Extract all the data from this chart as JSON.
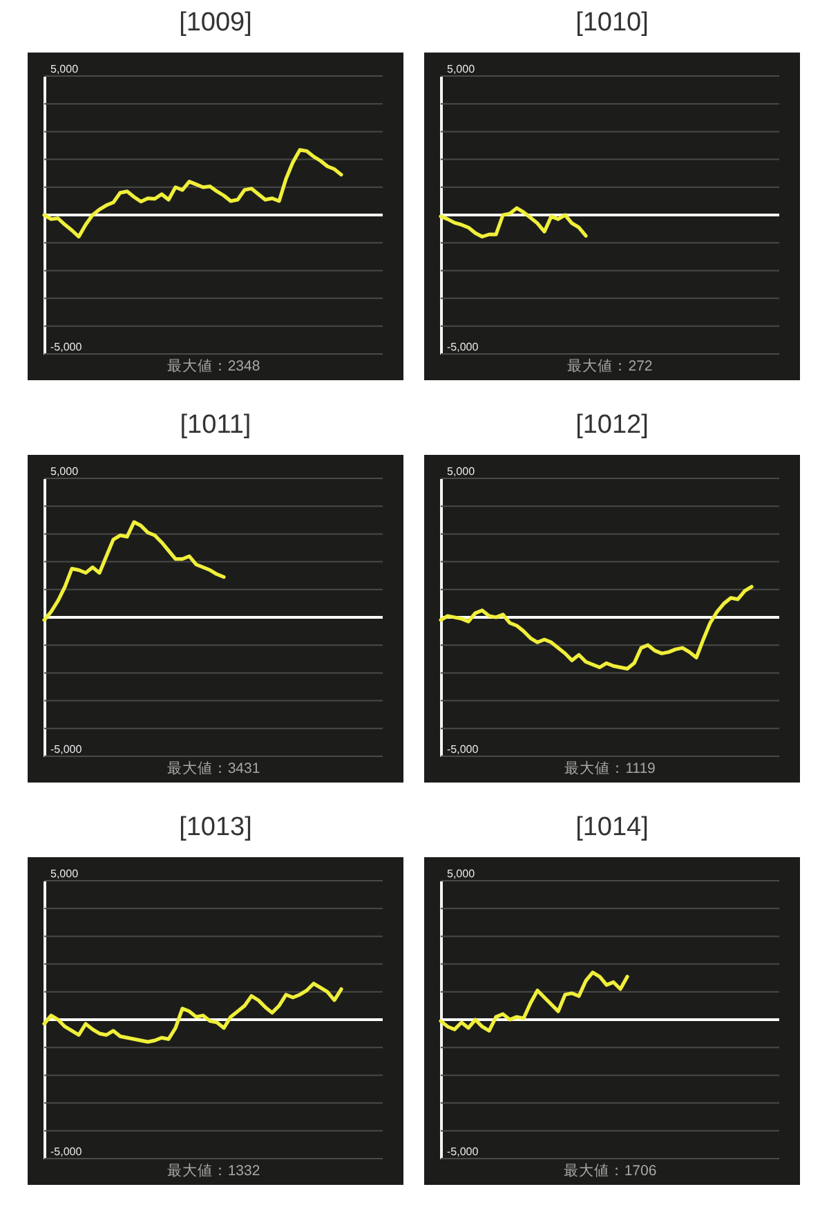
{
  "chart_data": [
    {
      "type": "line",
      "title": "[1009]",
      "categories": [
        null,
        null,
        null,
        null,
        null,
        null,
        null,
        null,
        null,
        null,
        null,
        null,
        null,
        null,
        null,
        null,
        null,
        null,
        null,
        null,
        null,
        null,
        null,
        null,
        null,
        null,
        null,
        null,
        null,
        null,
        null,
        null,
        null,
        null,
        null,
        null,
        null,
        null,
        null,
        null,
        null,
        null,
        null,
        null,
        null,
        null,
        null,
        null,
        null,
        null
      ],
      "color": "#f0ef3a",
      "values": [
        0,
        -150,
        -120,
        -350,
        -550,
        -780,
        -350,
        0,
        200,
        350,
        450,
        800,
        850,
        650,
        480,
        600,
        580,
        750,
        550,
        1000,
        900,
        1200,
        1100,
        1000,
        1030,
        850,
        700,
        500,
        550,
        900,
        950,
        750,
        550,
        600,
        500,
        1300,
        1900,
        2340,
        2300,
        2100,
        1950,
        1750,
        1650,
        1450,
        null,
        null,
        null,
        null,
        null,
        null
      ],
      "ylim": [
        -5000,
        5000
      ],
      "yticks": [
        {
          "value": 5000,
          "label": "5,000"
        },
        {
          "value": 4000,
          "label": null
        },
        {
          "value": 3000,
          "label": null
        },
        {
          "value": 2000,
          "label": null
        },
        {
          "value": 1000,
          "label": null
        },
        {
          "value": 0,
          "label": null
        },
        {
          "value": -1000,
          "label": null
        },
        {
          "value": -2000,
          "label": null
        },
        {
          "value": -3000,
          "label": null
        },
        {
          "value": -4000,
          "label": null
        },
        {
          "value": -5000,
          "label": "-5,000"
        }
      ],
      "grid": "y",
      "tick_labels": "y",
      "ref_lines": [
        {
          "axis": "y",
          "value": 0,
          "color": "#ffffff"
        }
      ],
      "annotations": [
        "最大値：2348"
      ]
    },
    {
      "type": "line",
      "title": "[1010]",
      "categories": [
        null,
        null,
        null,
        null,
        null,
        null,
        null,
        null,
        null,
        null,
        null,
        null,
        null,
        null,
        null,
        null,
        null,
        null,
        null,
        null,
        null,
        null,
        null,
        null,
        null,
        null,
        null,
        null,
        null,
        null,
        null,
        null,
        null,
        null,
        null,
        null,
        null,
        null,
        null,
        null,
        null,
        null,
        null,
        null,
        null,
        null,
        null,
        null,
        null,
        null
      ],
      "color": "#f0ef3a",
      "values": [
        -50,
        -150,
        -280,
        -350,
        -450,
        -650,
        -780,
        -700,
        -700,
        0,
        50,
        250,
        100,
        -100,
        -300,
        -600,
        -50,
        -150,
        0,
        -300,
        -450,
        -750,
        null,
        null,
        null,
        null,
        null,
        null,
        null,
        null,
        null,
        null,
        null,
        null,
        null,
        null,
        null,
        null,
        null,
        null,
        null,
        null,
        null,
        null,
        null,
        null,
        null,
        null,
        null,
        null
      ],
      "ylim": [
        -5000,
        5000
      ],
      "yticks": [
        {
          "value": 5000,
          "label": "5,000"
        },
        {
          "value": 4000,
          "label": null
        },
        {
          "value": 3000,
          "label": null
        },
        {
          "value": 2000,
          "label": null
        },
        {
          "value": 1000,
          "label": null
        },
        {
          "value": 0,
          "label": null
        },
        {
          "value": -1000,
          "label": null
        },
        {
          "value": -2000,
          "label": null
        },
        {
          "value": -3000,
          "label": null
        },
        {
          "value": -4000,
          "label": null
        },
        {
          "value": -5000,
          "label": "-5,000"
        }
      ],
      "grid": "y",
      "tick_labels": "y",
      "ref_lines": [
        {
          "axis": "y",
          "value": 0,
          "color": "#ffffff"
        }
      ],
      "annotations": [
        "最大値：272"
      ]
    },
    {
      "type": "line",
      "title": "[1011]",
      "categories": [
        null,
        null,
        null,
        null,
        null,
        null,
        null,
        null,
        null,
        null,
        null,
        null,
        null,
        null,
        null,
        null,
        null,
        null,
        null,
        null,
        null,
        null,
        null,
        null,
        null,
        null,
        null,
        null,
        null,
        null,
        null,
        null,
        null,
        null,
        null,
        null,
        null,
        null,
        null,
        null,
        null,
        null,
        null,
        null,
        null,
        null,
        null,
        null,
        null,
        null
      ],
      "color": "#f0ef3a",
      "values": [
        -100,
        200,
        600,
        1100,
        1750,
        1700,
        1600,
        1800,
        1600,
        2200,
        2800,
        2950,
        2900,
        3430,
        3300,
        3050,
        2950,
        2700,
        2400,
        2100,
        2100,
        2200,
        1900,
        1800,
        1700,
        1550,
        1450,
        null,
        null,
        null,
        null,
        null,
        null,
        null,
        null,
        null,
        null,
        null,
        null,
        null,
        null,
        null,
        null,
        null,
        null,
        null,
        null,
        null,
        null,
        null
      ],
      "ylim": [
        -5000,
        5000
      ],
      "yticks": [
        {
          "value": 5000,
          "label": "5,000"
        },
        {
          "value": 4000,
          "label": null
        },
        {
          "value": 3000,
          "label": null
        },
        {
          "value": 2000,
          "label": null
        },
        {
          "value": 1000,
          "label": null
        },
        {
          "value": 0,
          "label": null
        },
        {
          "value": -1000,
          "label": null
        },
        {
          "value": -2000,
          "label": null
        },
        {
          "value": -3000,
          "label": null
        },
        {
          "value": -4000,
          "label": null
        },
        {
          "value": -5000,
          "label": "-5,000"
        }
      ],
      "grid": "y",
      "tick_labels": "y",
      "ref_lines": [
        {
          "axis": "y",
          "value": 0,
          "color": "#ffffff"
        }
      ],
      "annotations": [
        "最大値：3431"
      ]
    },
    {
      "type": "line",
      "title": "[1012]",
      "categories": [
        null,
        null,
        null,
        null,
        null,
        null,
        null,
        null,
        null,
        null,
        null,
        null,
        null,
        null,
        null,
        null,
        null,
        null,
        null,
        null,
        null,
        null,
        null,
        null,
        null,
        null,
        null,
        null,
        null,
        null,
        null,
        null,
        null,
        null,
        null,
        null,
        null,
        null,
        null,
        null,
        null,
        null,
        null,
        null,
        null,
        null,
        null,
        null,
        null,
        null
      ],
      "color": "#f0ef3a",
      "values": [
        -100,
        50,
        0,
        -50,
        -150,
        150,
        250,
        50,
        0,
        100,
        -200,
        -300,
        -500,
        -750,
        -900,
        -800,
        -900,
        -1100,
        -1300,
        -1550,
        -1350,
        -1600,
        -1700,
        -1800,
        -1650,
        -1750,
        -1800,
        -1850,
        -1650,
        -1100,
        -1000,
        -1200,
        -1300,
        -1250,
        -1150,
        -1100,
        -1250,
        -1450,
        -800,
        -200,
        200,
        500,
        700,
        650,
        950,
        1100,
        null,
        null,
        null,
        null
      ],
      "ylim": [
        -5000,
        5000
      ],
      "yticks": [
        {
          "value": 5000,
          "label": "5,000"
        },
        {
          "value": 4000,
          "label": null
        },
        {
          "value": 3000,
          "label": null
        },
        {
          "value": 2000,
          "label": null
        },
        {
          "value": 1000,
          "label": null
        },
        {
          "value": 0,
          "label": null
        },
        {
          "value": -1000,
          "label": null
        },
        {
          "value": -2000,
          "label": null
        },
        {
          "value": -3000,
          "label": null
        },
        {
          "value": -4000,
          "label": null
        },
        {
          "value": -5000,
          "label": "-5,000"
        }
      ],
      "grid": "y",
      "tick_labels": "y",
      "ref_lines": [
        {
          "axis": "y",
          "value": 0,
          "color": "#ffffff"
        }
      ],
      "annotations": [
        "最大値：1119"
      ]
    },
    {
      "type": "line",
      "title": "[1013]",
      "categories": [
        null,
        null,
        null,
        null,
        null,
        null,
        null,
        null,
        null,
        null,
        null,
        null,
        null,
        null,
        null,
        null,
        null,
        null,
        null,
        null,
        null,
        null,
        null,
        null,
        null,
        null,
        null,
        null,
        null,
        null,
        null,
        null,
        null,
        null,
        null,
        null,
        null,
        null,
        null,
        null,
        null,
        null,
        null,
        null,
        null,
        null,
        null,
        null,
        null,
        null
      ],
      "color": "#f0ef3a",
      "values": [
        -150,
        150,
        0,
        -250,
        -400,
        -550,
        -150,
        -350,
        -500,
        -550,
        -400,
        -600,
        -650,
        -700,
        -750,
        -800,
        -750,
        -650,
        -700,
        -300,
        400,
        300,
        100,
        150,
        -50,
        -100,
        -300,
        100,
        300,
        500,
        850,
        700,
        450,
        250,
        500,
        900,
        800,
        900,
        1050,
        1300,
        1150,
        1000,
        700,
        1100,
        null,
        null,
        null,
        null,
        null,
        null
      ],
      "ylim": [
        -5000,
        5000
      ],
      "yticks": [
        {
          "value": 5000,
          "label": "5,000"
        },
        {
          "value": 4000,
          "label": null
        },
        {
          "value": 3000,
          "label": null
        },
        {
          "value": 2000,
          "label": null
        },
        {
          "value": 1000,
          "label": null
        },
        {
          "value": 0,
          "label": null
        },
        {
          "value": -1000,
          "label": null
        },
        {
          "value": -2000,
          "label": null
        },
        {
          "value": -3000,
          "label": null
        },
        {
          "value": -4000,
          "label": null
        },
        {
          "value": -5000,
          "label": "-5,000"
        }
      ],
      "grid": "y",
      "tick_labels": "y",
      "ref_lines": [
        {
          "axis": "y",
          "value": 0,
          "color": "#ffffff"
        }
      ],
      "annotations": [
        "最大値：1332"
      ]
    },
    {
      "type": "line",
      "title": "[1014]",
      "categories": [
        null,
        null,
        null,
        null,
        null,
        null,
        null,
        null,
        null,
        null,
        null,
        null,
        null,
        null,
        null,
        null,
        null,
        null,
        null,
        null,
        null,
        null,
        null,
        null,
        null,
        null,
        null,
        null,
        null,
        null,
        null,
        null,
        null,
        null,
        null,
        null,
        null,
        null,
        null,
        null,
        null,
        null,
        null,
        null,
        null,
        null,
        null,
        null,
        null,
        null
      ],
      "color": "#f0ef3a",
      "values": [
        -50,
        -250,
        -350,
        -100,
        -300,
        0,
        -250,
        -400,
        100,
        200,
        0,
        100,
        50,
        600,
        1050,
        800,
        550,
        300,
        900,
        950,
        850,
        1400,
        1700,
        1550,
        1250,
        1350,
        1100,
        1550,
        null,
        null,
        null,
        null,
        null,
        null,
        null,
        null,
        null,
        null,
        null,
        null,
        null,
        null,
        null,
        null,
        null,
        null,
        null,
        null,
        null,
        null
      ],
      "ylim": [
        -5000,
        5000
      ],
      "yticks": [
        {
          "value": 5000,
          "label": "5,000"
        },
        {
          "value": 4000,
          "label": null
        },
        {
          "value": 3000,
          "label": null
        },
        {
          "value": 2000,
          "label": null
        },
        {
          "value": 1000,
          "label": null
        },
        {
          "value": 0,
          "label": null
        },
        {
          "value": -1000,
          "label": null
        },
        {
          "value": -2000,
          "label": null
        },
        {
          "value": -3000,
          "label": null
        },
        {
          "value": -4000,
          "label": null
        },
        {
          "value": -5000,
          "label": "-5,000"
        }
      ],
      "grid": "y",
      "tick_labels": "y",
      "ref_lines": [
        {
          "axis": "y",
          "value": 0,
          "color": "#ffffff"
        }
      ],
      "annotations": [
        "最大値：1706"
      ]
    }
  ]
}
